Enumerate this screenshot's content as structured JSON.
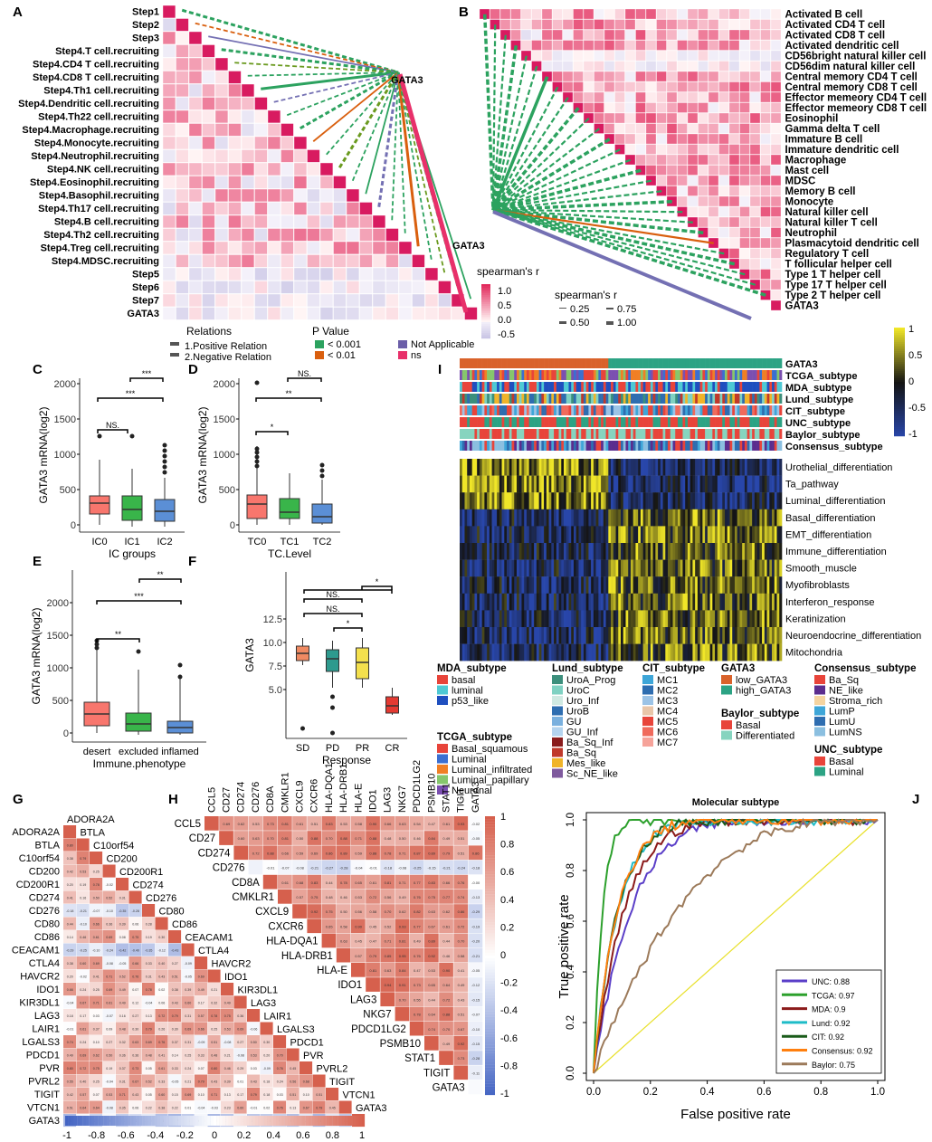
{
  "panel_letters": [
    "A",
    "B",
    "C",
    "D",
    "E",
    "F",
    "G",
    "H",
    "I",
    "J"
  ],
  "colors": {
    "pos": "#d6604d",
    "neg": "#4393c3",
    "pink": "#e8306a",
    "green": "#2ca25f",
    "orange": "#d95f0e",
    "olive": "#6a9a1f",
    "purple": "#7470b3",
    "ic0": "#f8766d",
    "ic1": "#39b54a",
    "ic2": "#5b8fd6",
    "sd": "#f08a62",
    "pd": "#2e9a8e",
    "pr": "#f4e04d",
    "cr": "#e43a32"
  },
  "panelA": {
    "rows": [
      "Step1",
      "Step2",
      "Step3",
      "Step4.T cell.recruiting",
      "Step4.CD4 T cell.recruiting",
      "Step4.CD8 T cell.recruiting",
      "Step4.Th1 cell.recruiting",
      "Step4.Dendritic cell.recruiting",
      "Step4.Th22 cell.recruiting",
      "Step4.Macrophage.recruiting",
      "Step4.Monocyte.recruiting",
      "Step4.Neutrophil.recruiting",
      "Step4.NK cell.recruiting",
      "Step4.Eosinophil.recruiting",
      "Step4.Basophil.recruiting",
      "Step4.Th17 cell.recruiting",
      "Step4.B cell.recruiting",
      "Step4.Th2 cell.recruiting",
      "Step4.Treg cell.recruiting",
      "Step4.MDSC.recruiting",
      "Step5",
      "Step6",
      "Step7",
      "GATA3"
    ],
    "node": "GATA3",
    "legend": {
      "relations_title": "Relations",
      "relations": [
        "1.Positive Relation",
        "2.Negative Relation"
      ],
      "p_title": "P Value",
      "p": [
        "< 0.001",
        "< 0.01",
        "Not Applicable",
        "ns"
      ]
    }
  },
  "panelB": {
    "rows": [
      "Activated B cell",
      "Activated CD4 T cell",
      "Activated CD8 T cell",
      "Activated dendritic cell",
      "CD56bright natural killer cell",
      "CD56dim natural killer cell",
      "Central memory CD4 T cell",
      "Central memory CD8 T cell",
      "Effector memeory CD4 T cell",
      "Effector memeory CD8 T cell",
      "Eosinophil",
      "Gamma delta T cell",
      "Immature  B cell",
      "Immature dendritic cell",
      "Macrophage",
      "Mast cell",
      "MDSC",
      "Memory B cell",
      "Monocyte",
      "Natural killer cell",
      "Natural killer T cell",
      "Neutrophil",
      "Plasmacytoid dendritic cell",
      "Regulatory T cell",
      "T follicular helper cell",
      "Type 1 T helper cell",
      "Type 17 T helper cell",
      "Type 2 T helper cell",
      "GATA3"
    ],
    "node": "GATA3",
    "colorbar_title": "spearman's r",
    "colorbar_ticks": [
      "1.0",
      "0.5",
      "0.0",
      "-0.5"
    ],
    "size_title": "spearman's r",
    "size_ticks": [
      "0.25",
      "0.75",
      "0.50",
      "1.00"
    ]
  },
  "panelC": {
    "ylabel": "GATA3 mRNA(log2)",
    "xlabel": "IC groups",
    "categories": [
      "IC0",
      "IC1",
      "IC2"
    ],
    "yticks": [
      "0",
      "500",
      "1000",
      "1500",
      "2000"
    ],
    "sig": [
      "NS.",
      "***",
      "***"
    ]
  },
  "panelD": {
    "ylabel": "GATA3 mRNA(log2)",
    "xlabel": "TC.Level",
    "categories": [
      "TC0",
      "TC1",
      "TC2"
    ],
    "yticks": [
      "0",
      "500",
      "1000",
      "1500",
      "2000"
    ],
    "sig": [
      "*",
      "**",
      "NS."
    ]
  },
  "panelE": {
    "ylabel": "GATA3 mRNA(log2)",
    "xlabel": "Immune.phenotype",
    "categories": [
      "desert",
      "excluded",
      "inflamed"
    ],
    "yticks": [
      "0",
      "500",
      "1000",
      "1500",
      "2000"
    ],
    "sig": [
      "**",
      "***",
      "**"
    ]
  },
  "panelF": {
    "ylabel": "GATA3",
    "xlabel": "Response",
    "categories": [
      "SD",
      "PD",
      "PR",
      "CR"
    ],
    "yticks": [
      "5.0",
      "7.5",
      "10.0",
      "12.5"
    ],
    "sig": [
      "NS.",
      "NS.",
      "*",
      "*"
    ]
  },
  "panelG": {
    "genes": [
      "ADORA2A",
      "BTLA",
      "C10orf54",
      "CD200",
      "CD200R1",
      "CD274",
      "CD276",
      "CD80",
      "CD86",
      "CEACAM1",
      "CTLA4",
      "HAVCR2",
      "IDO1",
      "KIR3DL1",
      "LAG3",
      "LAIR1",
      "LGALS3",
      "PDCD1",
      "PVR",
      "PVRL2",
      "TIGIT",
      "VTCN1",
      "GATA3"
    ],
    "colorbar_ticks": [
      "-1",
      "-0.8",
      "-0.6",
      "-0.4",
      "-0.2",
      "0",
      "0.2",
      "0.4",
      "0.6",
      "0.8",
      "1"
    ]
  },
  "panelH": {
    "genes": [
      "CCL5",
      "CD27",
      "CD274",
      "CD276",
      "CD8A",
      "CMKLR1",
      "CXCL9",
      "CXCR6",
      "HLA-DQA1",
      "HLA-DRB1",
      "HLA-E",
      "IDO1",
      "LAG3",
      "NKG7",
      "PDCD1LG2",
      "PSMB10",
      "STAT1",
      "TIGIT",
      "GATA3"
    ],
    "colorbar_ticks": [
      "1",
      "0.8",
      "0.6",
      "0.4",
      "0.2",
      "0",
      "-0.2",
      "-0.4",
      "-0.6",
      "-0.8",
      "-1"
    ]
  },
  "panelI": {
    "annotation_rows": [
      "GATA3",
      "TCGA_subtype",
      "MDA_subtype",
      "Lund_subtype",
      "CIT_subtype",
      "UNC_subtype",
      "Baylor_subtype",
      "Consensus_subtype"
    ],
    "signature_rows": [
      "Urothelial_differentiation",
      "Ta_pathway",
      "Luminal_differentiation",
      "Basal_differentiation",
      "EMT_differentiation",
      "Immune_differentiation",
      "Smooth_muscle",
      "Myofibroblasts",
      "Interferon_response",
      "Keratinization",
      "Neuroendocrine_differentiation",
      "Mitochondria"
    ],
    "colorbar_ticks": [
      "1",
      "0.5",
      "0",
      "-0.5",
      "-1"
    ],
    "legends": [
      {
        "title": "MDA_subtype",
        "items": [
          {
            "label": "basal",
            "color": "#e8443a"
          },
          {
            "label": "luminal",
            "color": "#4ec9d4"
          },
          {
            "label": "p53_like",
            "color": "#1f4fbf"
          }
        ]
      },
      {
        "title": "TCGA_subtype",
        "items": [
          {
            "label": "Basal_squamous",
            "color": "#e8443a"
          },
          {
            "label": "Luminal",
            "color": "#3b6fd1"
          },
          {
            "label": "Luminal_infiltrated",
            "color": "#f07f25"
          },
          {
            "label": "Luminal_papillary",
            "color": "#86c66c"
          },
          {
            "label": "Neuronal",
            "color": "#7b4fb0"
          }
        ]
      },
      {
        "title": "Lund_subtype",
        "items": [
          {
            "label": "UroA_Prog",
            "color": "#3c8f7c"
          },
          {
            "label": "UroC",
            "color": "#7fd1c2"
          },
          {
            "label": "Uro_Inf",
            "color": "#cfe9e2"
          },
          {
            "label": "UroB",
            "color": "#2e6db0"
          },
          {
            "label": "GU",
            "color": "#7ab0de"
          },
          {
            "label": "GU_Inf",
            "color": "#b4d4ef"
          },
          {
            "label": "Ba_Sq_Inf",
            "color": "#8a1c1c"
          },
          {
            "label": "Ba_Sq",
            "color": "#c0392b"
          },
          {
            "label": "Mes_like",
            "color": "#f0b429"
          },
          {
            "label": "Sc_NE_like",
            "color": "#7f5a9e"
          }
        ]
      },
      {
        "title": "CIT_subtype",
        "items": [
          {
            "label": "MC1",
            "color": "#3ea6d8"
          },
          {
            "label": "MC2",
            "color": "#2e6db0"
          },
          {
            "label": "MC3",
            "color": "#9cc3e6"
          },
          {
            "label": "MC4",
            "color": "#e9c6a9"
          },
          {
            "label": "MC5",
            "color": "#e8443a"
          },
          {
            "label": "MC6",
            "color": "#f06a5c"
          },
          {
            "label": "MC7",
            "color": "#f6a39a"
          }
        ]
      },
      {
        "title": "GATA3",
        "items": [
          {
            "label": "low_GATA3",
            "color": "#d9622b"
          },
          {
            "label": "high_GATA3",
            "color": "#2ca384"
          }
        ]
      },
      {
        "title": "Baylor_subtype",
        "items": [
          {
            "label": "Basal",
            "color": "#e8443a"
          },
          {
            "label": "Differentiated",
            "color": "#86d4bf"
          }
        ]
      },
      {
        "title": "Consensus_subtype",
        "items": [
          {
            "label": "Ba_Sq",
            "color": "#e8443a"
          },
          {
            "label": "NE_like",
            "color": "#5b2d8e"
          },
          {
            "label": "Stroma_rich",
            "color": "#f5d4a0"
          },
          {
            "label": "LumP",
            "color": "#3ea6d8"
          },
          {
            "label": "LumU",
            "color": "#2e6db0"
          },
          {
            "label": "LumNS",
            "color": "#8bbfe0"
          }
        ]
      },
      {
        "title": "UNC_subtype",
        "items": [
          {
            "label": "Basal",
            "color": "#e8443a"
          },
          {
            "label": "Luminal",
            "color": "#2ca384"
          }
        ]
      }
    ]
  },
  "chart_data": {
    "type": "line",
    "title": "Molecular subtype",
    "xlabel": "False positive rate",
    "ylabel": "True positive rate",
    "xlim": [
      0,
      1
    ],
    "ylim": [
      0,
      1
    ],
    "ticks": [
      "0.0",
      "0.2",
      "0.4",
      "0.6",
      "0.8",
      "1.0"
    ],
    "legend_position": "bottom-right",
    "series": [
      {
        "name": "UNC: 0.88",
        "auc": 0.88,
        "color": "#5a3ec8"
      },
      {
        "name": "TCGA: 0.97",
        "auc": 0.97,
        "color": "#2ca02c"
      },
      {
        "name": "MDA: 0.9",
        "auc": 0.9,
        "color": "#8b1a1a"
      },
      {
        "name": "Lund: 0.92",
        "auc": 0.92,
        "color": "#1fbcc8"
      },
      {
        "name": "CIT: 0.92",
        "auc": 0.92,
        "color": "#1a5c1a"
      },
      {
        "name": "Consensus: 0.92",
        "auc": 0.92,
        "color": "#ff7f0e"
      },
      {
        "name": "Baylor: 0.75",
        "auc": 0.75,
        "color": "#9c7a5a"
      }
    ]
  }
}
